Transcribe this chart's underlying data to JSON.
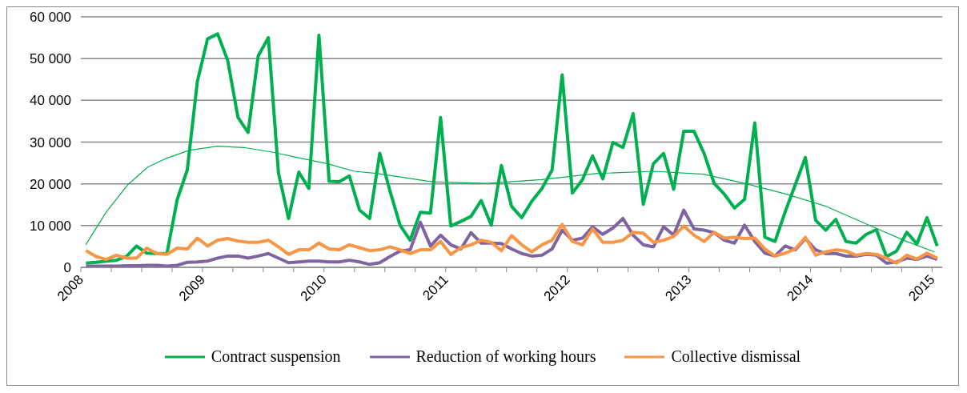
{
  "chart_data": {
    "type": "line",
    "x": [
      2008.042,
      2008.125,
      2008.208,
      2008.292,
      2008.375,
      2008.458,
      2008.542,
      2008.625,
      2008.708,
      2008.792,
      2008.875,
      2008.958,
      2009.042,
      2009.125,
      2009.208,
      2009.292,
      2009.375,
      2009.458,
      2009.542,
      2009.625,
      2009.708,
      2009.792,
      2009.875,
      2009.958,
      2010.042,
      2010.125,
      2010.208,
      2010.292,
      2010.375,
      2010.458,
      2010.542,
      2010.625,
      2010.708,
      2010.792,
      2010.875,
      2010.958,
      2011.042,
      2011.125,
      2011.208,
      2011.292,
      2011.375,
      2011.458,
      2011.542,
      2011.625,
      2011.708,
      2011.792,
      2011.875,
      2011.958,
      2012.042,
      2012.125,
      2012.208,
      2012.292,
      2012.375,
      2012.458,
      2012.542,
      2012.625,
      2012.708,
      2012.792,
      2012.875,
      2012.958,
      2013.042,
      2013.125,
      2013.208,
      2013.292,
      2013.375,
      2013.458,
      2013.542,
      2013.625,
      2013.708,
      2013.792,
      2013.875,
      2013.958,
      2014.042,
      2014.125,
      2014.208,
      2014.292,
      2014.375,
      2014.458,
      2014.542,
      2014.625,
      2014.708,
      2014.792,
      2014.875,
      2014.958,
      2015.042
    ],
    "series": [
      {
        "name": "Contract suspension",
        "color": "#00b050",
        "values": [
          1000,
          1200,
          1500,
          1700,
          2600,
          5100,
          3400,
          3300,
          3300,
          16200,
          23300,
          44500,
          54700,
          55900,
          49500,
          35900,
          32300,
          50600,
          55000,
          22600,
          11700,
          22800,
          18900,
          55600,
          20600,
          20500,
          21900,
          13700,
          11700,
          27300,
          18300,
          10100,
          6500,
          13200,
          13000,
          35900,
          9900,
          11000,
          12200,
          16000,
          10100,
          24400,
          14600,
          11900,
          15800,
          18900,
          23300,
          46100,
          17800,
          21000,
          26700,
          21200,
          29900,
          28700,
          36800,
          15100,
          24800,
          27300,
          18700,
          32600,
          32600,
          27300,
          20100,
          17500,
          14200,
          16300,
          34600,
          7200,
          6200,
          13300,
          19800,
          26300,
          11300,
          8900,
          11500,
          6200,
          5800,
          7900,
          9000,
          2600,
          3900,
          8400,
          5600,
          11900,
          5100
        ]
      },
      {
        "name": "Reduction of working hours",
        "color": "#8064a2",
        "values": [
          300,
          300,
          300,
          300,
          400,
          400,
          500,
          500,
          300,
          500,
          1200,
          1300,
          1500,
          2200,
          2700,
          2700,
          2200,
          2700,
          3300,
          2200,
          1100,
          1300,
          1500,
          1500,
          1300,
          1300,
          1700,
          1300,
          700,
          1100,
          2600,
          3900,
          4200,
          10800,
          5100,
          7700,
          5400,
          4400,
          8300,
          5800,
          5800,
          5700,
          4400,
          3300,
          2700,
          2900,
          4400,
          8900,
          6500,
          7000,
          9700,
          7900,
          9400,
          11700,
          7700,
          5400,
          4900,
          9700,
          7700,
          13700,
          9200,
          8900,
          8300,
          6500,
          5800,
          10100,
          6200,
          3400,
          2700,
          5100,
          4200,
          6900,
          4200,
          3300,
          3300,
          2700,
          2700,
          3100,
          2900,
          1000,
          1300,
          2200,
          1900,
          2700,
          1900
        ]
      },
      {
        "name": "Collective dismissal",
        "color": "#f79646",
        "values": [
          4000,
          2600,
          1900,
          2900,
          2200,
          2200,
          4600,
          3300,
          3100,
          4600,
          4400,
          7000,
          5100,
          6500,
          6900,
          6300,
          6000,
          6000,
          6500,
          4900,
          3100,
          4200,
          4200,
          5800,
          4400,
          4200,
          5400,
          4700,
          4000,
          4200,
          4900,
          4200,
          3300,
          4200,
          4200,
          6200,
          3100,
          4700,
          5400,
          6500,
          6000,
          4000,
          7600,
          5400,
          3700,
          5400,
          6500,
          10300,
          6200,
          5400,
          9200,
          6000,
          6000,
          6500,
          8400,
          8200,
          6000,
          6500,
          7400,
          9900,
          7700,
          6200,
          8400,
          7000,
          7200,
          6900,
          7000,
          4400,
          2700,
          3400,
          4400,
          7200,
          2900,
          3700,
          4200,
          3900,
          2900,
          3300,
          3100,
          2200,
          1000,
          2900,
          2000,
          3400,
          2200
        ]
      },
      {
        "type": "line",
        "color": "#00b050",
        "x": [
          2008.04,
          2008.21,
          2008.39,
          2008.55,
          2008.71,
          2008.89,
          2009.12,
          2009.34,
          2009.57,
          2009.8,
          2010.03,
          2010.25,
          2010.43,
          2010.89,
          2011.34,
          2011.79,
          2012.25,
          2012.71,
          2013.12,
          2013.46,
          2013.79,
          2014.12,
          2014.48,
          2014.79,
          2015.02
        ],
        "values": [
          5400,
          13300,
          19900,
          24000,
          26200,
          28000,
          29000,
          28700,
          27600,
          26200,
          24800,
          23000,
          22500,
          20500,
          20100,
          21000,
          22500,
          23000,
          22300,
          20100,
          17600,
          14700,
          10100,
          6200,
          3700
        ]
      }
    ],
    "xlim": [
      2008,
      2015.083
    ],
    "xticks": [
      2008,
      {
        "value": 2008.25,
        "label": null
      },
      {
        "value": 2008.5,
        "label": null
      },
      {
        "value": 2008.75,
        "label": null
      },
      2009,
      {
        "value": 2009.25,
        "label": null
      },
      {
        "value": 2009.5,
        "label": null
      },
      {
        "value": 2009.75,
        "label": null
      },
      2010,
      {
        "value": 2010.25,
        "label": null
      },
      {
        "value": 2010.5,
        "label": null
      },
      {
        "value": 2010.75,
        "label": null
      },
      2011,
      {
        "value": 2011.25,
        "label": null
      },
      {
        "value": 2011.5,
        "label": null
      },
      {
        "value": 2011.75,
        "label": null
      },
      2012,
      {
        "value": 2012.25,
        "label": null
      },
      {
        "value": 2012.5,
        "label": null
      },
      {
        "value": 2012.75,
        "label": null
      },
      2013,
      {
        "value": 2013.25,
        "label": null
      },
      {
        "value": 2013.5,
        "label": null
      },
      {
        "value": 2013.75,
        "label": null
      },
      2014,
      {
        "value": 2014.25,
        "label": null
      },
      {
        "value": 2014.5,
        "label": null
      },
      {
        "value": 2014.75,
        "label": null
      },
      2015
    ],
    "ylim": [
      0,
      60000
    ],
    "yticks": [
      0,
      {
        "value": 10000,
        "label": "10 000"
      },
      {
        "value": 20000,
        "label": "20 000"
      },
      {
        "value": 30000,
        "label": "30 000"
      },
      {
        "value": 40000,
        "label": "40 000"
      },
      {
        "value": 50000,
        "label": "50 000"
      },
      {
        "value": 60000,
        "label": "60 000"
      }
    ],
    "grid": "y",
    "legend": "bottom",
    "marker": "none",
    "line_style": "solid"
  }
}
